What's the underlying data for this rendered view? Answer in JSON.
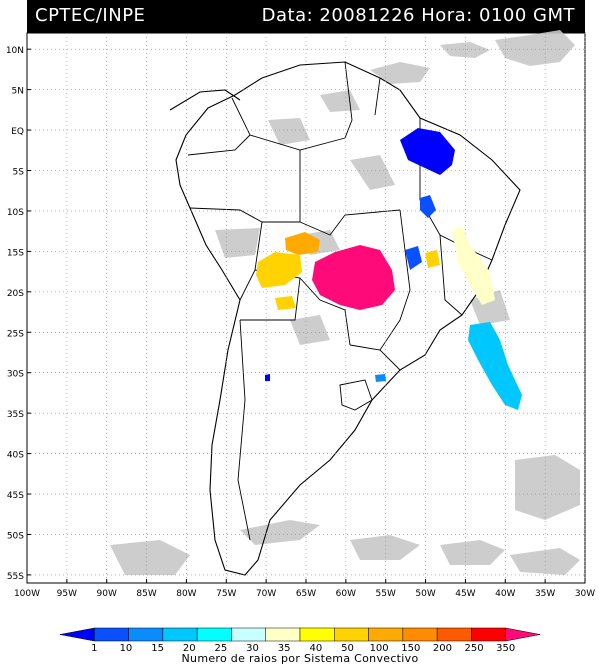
{
  "header": {
    "source": "CPTEC/INPE",
    "datetime": "Data: 20081226 Hora: 0100 GMT"
  },
  "map": {
    "lat_labels": [
      "10N",
      "5N",
      "EQ",
      "5S",
      "10S",
      "15S",
      "20S",
      "25S",
      "30S",
      "35S",
      "40S",
      "45S",
      "50S",
      "55S"
    ],
    "lat_values": [
      10,
      5,
      0,
      -5,
      -10,
      -15,
      -20,
      -25,
      -30,
      -35,
      -40,
      -45,
      -50,
      -55
    ],
    "lon_labels": [
      "100W",
      "95W",
      "90W",
      "85W",
      "80W",
      "75W",
      "70W",
      "65W",
      "60W",
      "55W",
      "50W",
      "45W",
      "40W",
      "35W",
      "30W"
    ],
    "lon_values": [
      -100,
      -95,
      -90,
      -85,
      -80,
      -75,
      -70,
      -65,
      -60,
      -55,
      -50,
      -45,
      -40,
      -35,
      -30
    ],
    "lon_range": [
      -100,
      -30
    ],
    "lat_range": [
      -56,
      12
    ],
    "grid": "dotted"
  },
  "colorbar": {
    "labels": [
      "1",
      "10",
      "15",
      "20",
      "25",
      "30",
      "35",
      "40",
      "50",
      "100",
      "150",
      "200",
      "250",
      "350"
    ],
    "colors": [
      "#0000ff",
      "#0a50ff",
      "#0a8cff",
      "#00c8ff",
      "#00ffff",
      "#c8ffff",
      "#ffffc8",
      "#ffff00",
      "#ffd200",
      "#ffaa00",
      "#ff8c00",
      "#ff5a00",
      "#ff0000",
      "#ff0a78"
    ],
    "title": "Numero de raios por Sistema Convectivo"
  }
}
